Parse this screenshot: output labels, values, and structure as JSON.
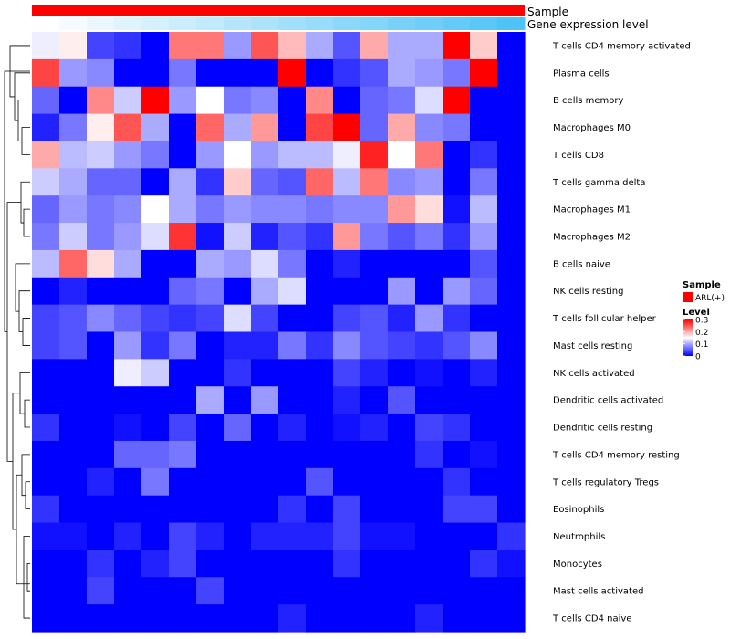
{
  "chart_data": {
    "type": "heatmap",
    "title": "",
    "annotation_tracks": [
      {
        "name": "Sample",
        "color": "#ff0000"
      },
      {
        "name": "Gene expression level",
        "gradient": [
          "#ffffff",
          "#4fc3f7"
        ]
      }
    ],
    "rows": [
      "T cells CD4 memory activated",
      "Plasma cells",
      "B cells memory",
      "Macrophages M0",
      "T cells CD8",
      "T cells gamma delta",
      "Macrophages M1",
      "Macrophages M2",
      "B cells naive",
      "NK cells resting",
      "T cells follicular helper",
      "Mast cells resting",
      "NK cells activated",
      "Dendritic cells activated",
      "Dendritic cells resting",
      "T cells CD4 memory resting",
      "T cells regulatory  Tregs",
      "Eosinophils",
      "Neutrophils",
      "Monocytes",
      "Mast cells activated",
      "T cells CD4 naive"
    ],
    "n_columns": 18,
    "values": [
      [
        0.14,
        0.16,
        0.04,
        0.03,
        0.0,
        0.23,
        0.23,
        0.09,
        0.25,
        0.19,
        0.1,
        0.05,
        0.2,
        0.1,
        0.1,
        0.3,
        0.18,
        0.0
      ],
      [
        0.26,
        0.09,
        0.08,
        0.0,
        0.0,
        0.07,
        0.0,
        0.0,
        0.0,
        0.3,
        0.0,
        0.03,
        0.05,
        0.1,
        0.09,
        0.07,
        0.3,
        0.0
      ],
      [
        0.06,
        0.0,
        0.22,
        0.12,
        0.3,
        0.09,
        0.15,
        0.07,
        0.08,
        0.0,
        0.22,
        0.0,
        0.06,
        0.07,
        0.13,
        0.3,
        0.0,
        0.0
      ],
      [
        0.02,
        0.07,
        0.16,
        0.25,
        0.1,
        0.0,
        0.24,
        0.1,
        0.21,
        0.0,
        0.26,
        0.3,
        0.06,
        0.2,
        0.08,
        0.07,
        0.0,
        0.0
      ],
      [
        0.2,
        0.11,
        0.12,
        0.09,
        0.07,
        0.0,
        0.09,
        0.15,
        0.09,
        0.11,
        0.11,
        0.14,
        0.28,
        0.15,
        0.23,
        0.0,
        0.03,
        0.0
      ],
      [
        0.12,
        0.1,
        0.06,
        0.06,
        0.0,
        0.1,
        0.03,
        0.18,
        0.06,
        0.05,
        0.24,
        0.11,
        0.23,
        0.08,
        0.09,
        0.0,
        0.07,
        0.0
      ],
      [
        0.06,
        0.09,
        0.07,
        0.08,
        0.15,
        0.1,
        0.07,
        0.09,
        0.08,
        0.08,
        0.07,
        0.08,
        0.08,
        0.21,
        0.17,
        0.01,
        0.11,
        0.0
      ],
      [
        0.07,
        0.12,
        0.07,
        0.09,
        0.13,
        0.27,
        0.01,
        0.12,
        0.02,
        0.05,
        0.03,
        0.21,
        0.07,
        0.05,
        0.07,
        0.03,
        0.09,
        0.0
      ],
      [
        0.11,
        0.24,
        0.17,
        0.1,
        0.0,
        0.0,
        0.1,
        0.09,
        0.13,
        0.07,
        0.0,
        0.02,
        0.0,
        0.0,
        0.0,
        0.0,
        0.05,
        0.0
      ],
      [
        0.0,
        0.02,
        0.0,
        0.0,
        0.0,
        0.06,
        0.07,
        0.0,
        0.1,
        0.13,
        0.0,
        0.0,
        0.0,
        0.09,
        0.0,
        0.09,
        0.06,
        0.0
      ],
      [
        0.04,
        0.05,
        0.08,
        0.06,
        0.04,
        0.03,
        0.04,
        0.13,
        0.04,
        0.0,
        0.0,
        0.04,
        0.05,
        0.02,
        0.09,
        0.03,
        0.0,
        0.0
      ],
      [
        0.04,
        0.05,
        0.0,
        0.09,
        0.03,
        0.07,
        0.0,
        0.02,
        0.02,
        0.07,
        0.03,
        0.08,
        0.05,
        0.04,
        0.03,
        0.05,
        0.08,
        0.0
      ],
      [
        0.0,
        0.0,
        0.0,
        0.14,
        0.12,
        0.0,
        0.0,
        0.03,
        0.0,
        0.0,
        0.0,
        0.04,
        0.02,
        0.0,
        0.01,
        0.0,
        0.02,
        0.0
      ],
      [
        0.0,
        0.0,
        0.0,
        0.0,
        0.0,
        0.0,
        0.1,
        0.0,
        0.09,
        0.0,
        0.0,
        0.02,
        0.0,
        0.05,
        0.0,
        0.0,
        0.0,
        0.0
      ],
      [
        0.03,
        0.0,
        0.0,
        0.01,
        0.0,
        0.04,
        0.0,
        0.06,
        0.0,
        0.02,
        0.0,
        0.01,
        0.02,
        0.0,
        0.04,
        0.03,
        0.0,
        0.0
      ],
      [
        0.0,
        0.0,
        0.0,
        0.06,
        0.06,
        0.07,
        0.0,
        0.0,
        0.0,
        0.0,
        0.0,
        0.0,
        0.0,
        0.0,
        0.03,
        0.0,
        0.01,
        0.0
      ],
      [
        0.0,
        0.0,
        0.02,
        0.0,
        0.07,
        0.0,
        0.0,
        0.0,
        0.0,
        0.0,
        0.05,
        0.0,
        0.0,
        0.0,
        0.0,
        0.03,
        0.0,
        0.0
      ],
      [
        0.03,
        0.0,
        0.0,
        0.0,
        0.0,
        0.0,
        0.0,
        0.0,
        0.0,
        0.03,
        0.0,
        0.04,
        0.0,
        0.0,
        0.0,
        0.04,
        0.04,
        0.0
      ],
      [
        0.01,
        0.01,
        0.0,
        0.02,
        0.0,
        0.04,
        0.02,
        0.0,
        0.02,
        0.02,
        0.02,
        0.04,
        0.01,
        0.01,
        0.0,
        0.0,
        0.0,
        0.03
      ],
      [
        0.0,
        0.0,
        0.03,
        0.0,
        0.02,
        0.04,
        0.0,
        0.0,
        0.0,
        0.0,
        0.0,
        0.03,
        0.0,
        0.0,
        0.0,
        0.0,
        0.03,
        0.01
      ],
      [
        0.0,
        0.0,
        0.04,
        0.0,
        0.0,
        0.0,
        0.04,
        0.0,
        0.0,
        0.0,
        0.0,
        0.0,
        0.0,
        0.0,
        0.0,
        0.0,
        0.0,
        0.0
      ],
      [
        0.0,
        0.0,
        0.0,
        0.0,
        0.0,
        0.0,
        0.0,
        0.0,
        0.0,
        0.02,
        0.0,
        0.0,
        0.0,
        0.0,
        0.02,
        0.0,
        0.0,
        0.0
      ]
    ],
    "color_scale": {
      "min": 0,
      "max": 0.3,
      "low": "#0000ff",
      "mid": "#ffffff",
      "high": "#ff0000",
      "mid_value": 0.15
    },
    "legend": {
      "sample_title": "Sample",
      "sample_entry": "ARL(+)",
      "level_title": "Level",
      "ticks": [
        "0.3",
        "0.2",
        "0.1",
        "0"
      ],
      "tick_values": [
        0.3,
        0.2,
        0.1,
        0
      ]
    },
    "dendrogram": "row clustering, left side"
  }
}
